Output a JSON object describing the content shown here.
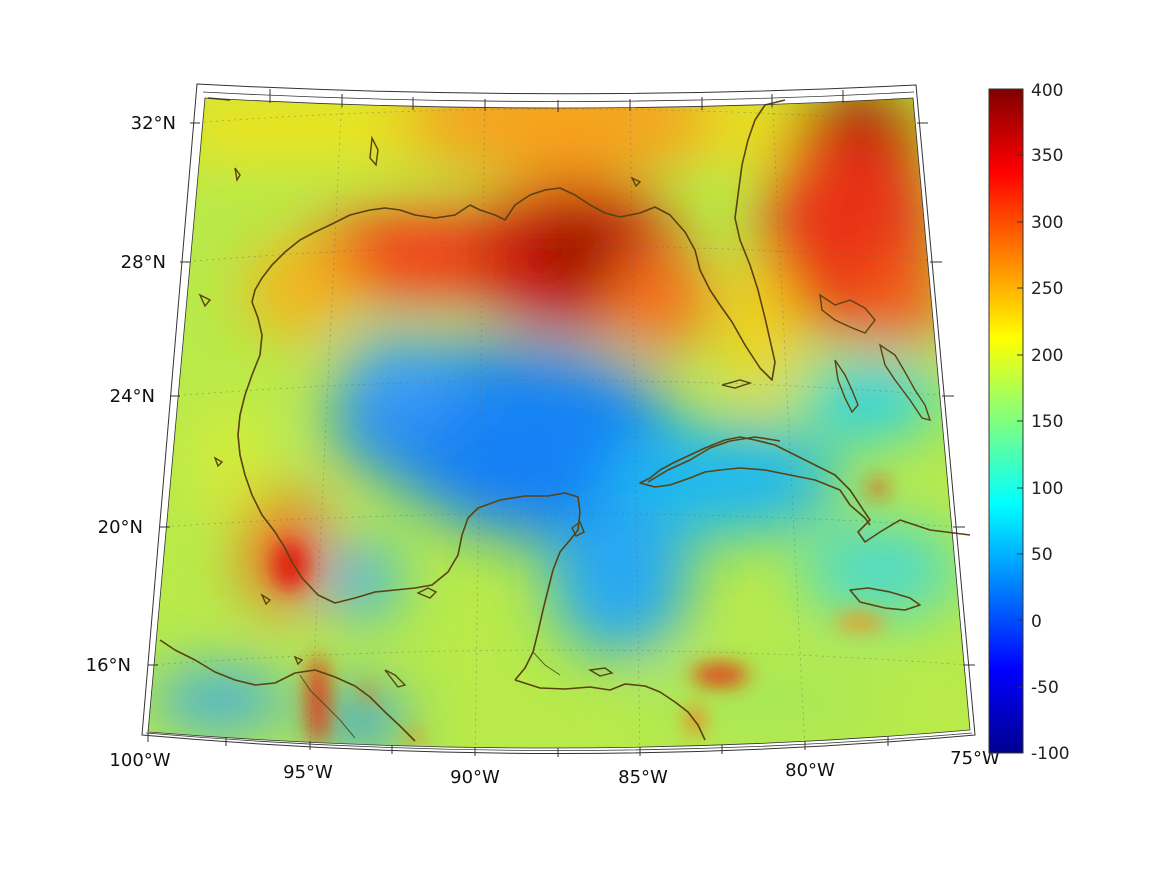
{
  "map": {
    "lat_labels": [
      "32°N",
      "28°N",
      "24°N",
      "20°N",
      "16°N"
    ],
    "lon_labels": [
      "100°W",
      "95°W",
      "90°W",
      "85°W",
      "80°W",
      "75°W"
    ]
  },
  "colorbar": {
    "ticks": [
      "400",
      "350",
      "300",
      "250",
      "200",
      "150",
      "100",
      "50",
      "0",
      "-50",
      "-100"
    ],
    "range": [
      -100,
      400
    ],
    "colormap": "jet"
  },
  "colors": {
    "coastline": "#5a4312",
    "background": "#ffffff"
  }
}
